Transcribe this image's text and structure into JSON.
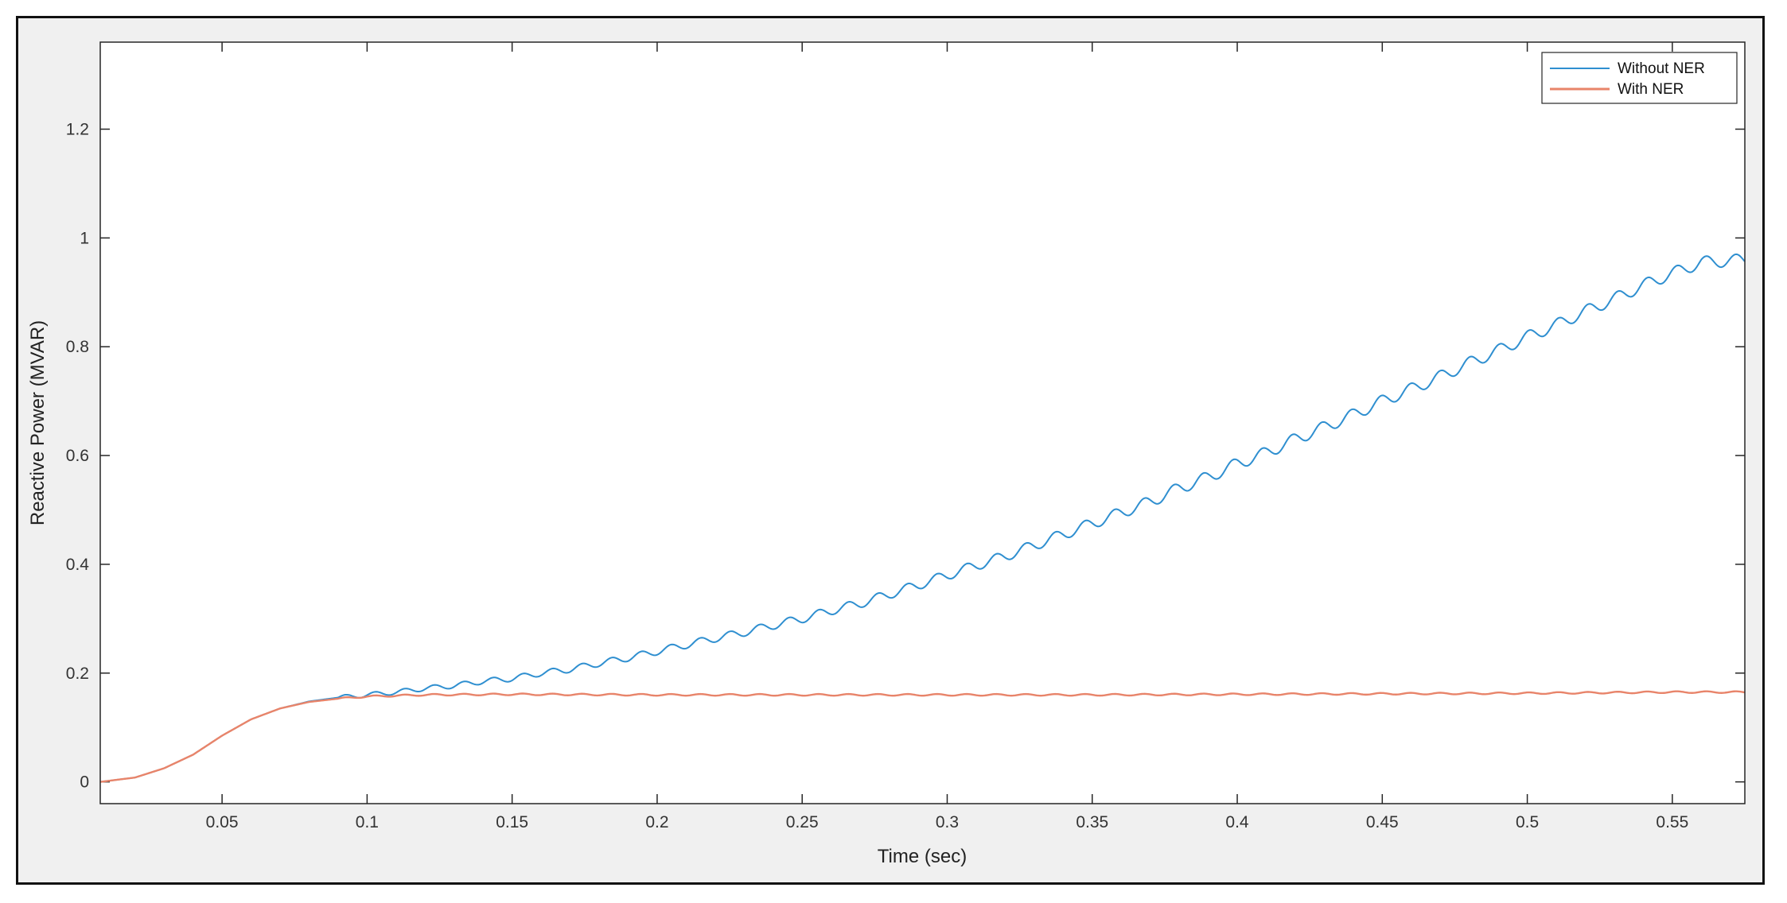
{
  "chart_data": {
    "type": "line",
    "title": "",
    "xlabel": "Time (sec)",
    "ylabel": "Reactive Power (MVAR)",
    "xlim": [
      0.008,
      0.575
    ],
    "ylim": [
      -0.04,
      1.36
    ],
    "xticks": [
      0.05,
      0.1,
      0.15,
      0.2,
      0.25,
      0.3,
      0.35,
      0.4,
      0.45,
      0.5,
      0.55
    ],
    "xtick_labels": [
      "0.05",
      "0.1",
      "0.15",
      "0.2",
      "0.25",
      "0.3",
      "0.35",
      "0.4",
      "0.45",
      "0.5",
      "0.55"
    ],
    "yticks": [
      0,
      0.2,
      0.4,
      0.6,
      0.8,
      1,
      1.2
    ],
    "ytick_labels": [
      "0",
      "0.2",
      "0.4",
      "0.6",
      "0.8",
      "1",
      "1.2"
    ],
    "grid": false,
    "legend_position": "top-right",
    "series": [
      {
        "name": "Without NER",
        "color": "#2f8fd0",
        "points": [
          [
            0.008,
            0.0
          ],
          [
            0.02,
            0.008
          ],
          [
            0.03,
            0.025
          ],
          [
            0.04,
            0.05
          ],
          [
            0.05,
            0.085
          ],
          [
            0.06,
            0.115
          ],
          [
            0.07,
            0.135
          ],
          [
            0.08,
            0.148
          ],
          [
            0.09,
            0.155
          ],
          [
            0.1,
            0.16
          ],
          [
            0.11,
            0.165
          ],
          [
            0.12,
            0.172
          ],
          [
            0.13,
            0.177
          ],
          [
            0.14,
            0.185
          ],
          [
            0.15,
            0.19
          ],
          [
            0.16,
            0.2
          ],
          [
            0.17,
            0.207
          ],
          [
            0.18,
            0.218
          ],
          [
            0.19,
            0.228
          ],
          [
            0.2,
            0.24
          ],
          [
            0.21,
            0.252
          ],
          [
            0.22,
            0.264
          ],
          [
            0.23,
            0.275
          ],
          [
            0.24,
            0.288
          ],
          [
            0.25,
            0.3
          ],
          [
            0.26,
            0.315
          ],
          [
            0.27,
            0.328
          ],
          [
            0.28,
            0.345
          ],
          [
            0.29,
            0.362
          ],
          [
            0.3,
            0.38
          ],
          [
            0.31,
            0.398
          ],
          [
            0.32,
            0.415
          ],
          [
            0.33,
            0.435
          ],
          [
            0.34,
            0.455
          ],
          [
            0.35,
            0.475
          ],
          [
            0.36,
            0.495
          ],
          [
            0.37,
            0.515
          ],
          [
            0.38,
            0.54
          ],
          [
            0.39,
            0.56
          ],
          [
            0.4,
            0.585
          ],
          [
            0.41,
            0.605
          ],
          [
            0.42,
            0.63
          ],
          [
            0.43,
            0.652
          ],
          [
            0.44,
            0.675
          ],
          [
            0.45,
            0.7
          ],
          [
            0.46,
            0.722
          ],
          [
            0.47,
            0.745
          ],
          [
            0.48,
            0.77
          ],
          [
            0.49,
            0.793
          ],
          [
            0.5,
            0.818
          ],
          [
            0.51,
            0.84
          ],
          [
            0.52,
            0.865
          ],
          [
            0.53,
            0.888
          ],
          [
            0.54,
            0.913
          ],
          [
            0.55,
            0.935
          ],
          [
            0.56,
            0.955
          ],
          [
            0.575,
            0.96
          ]
        ]
      },
      {
        "name": "With NER",
        "color": "#e8846a",
        "points": [
          [
            0.008,
            0.0
          ],
          [
            0.02,
            0.008
          ],
          [
            0.03,
            0.025
          ],
          [
            0.04,
            0.05
          ],
          [
            0.05,
            0.085
          ],
          [
            0.06,
            0.115
          ],
          [
            0.07,
            0.135
          ],
          [
            0.08,
            0.147
          ],
          [
            0.09,
            0.153
          ],
          [
            0.1,
            0.157
          ],
          [
            0.12,
            0.16
          ],
          [
            0.15,
            0.161
          ],
          [
            0.2,
            0.16
          ],
          [
            0.25,
            0.16
          ],
          [
            0.3,
            0.16
          ],
          [
            0.35,
            0.16
          ],
          [
            0.4,
            0.161
          ],
          [
            0.45,
            0.162
          ],
          [
            0.5,
            0.163
          ],
          [
            0.55,
            0.165
          ],
          [
            0.575,
            0.165
          ]
        ]
      }
    ]
  }
}
